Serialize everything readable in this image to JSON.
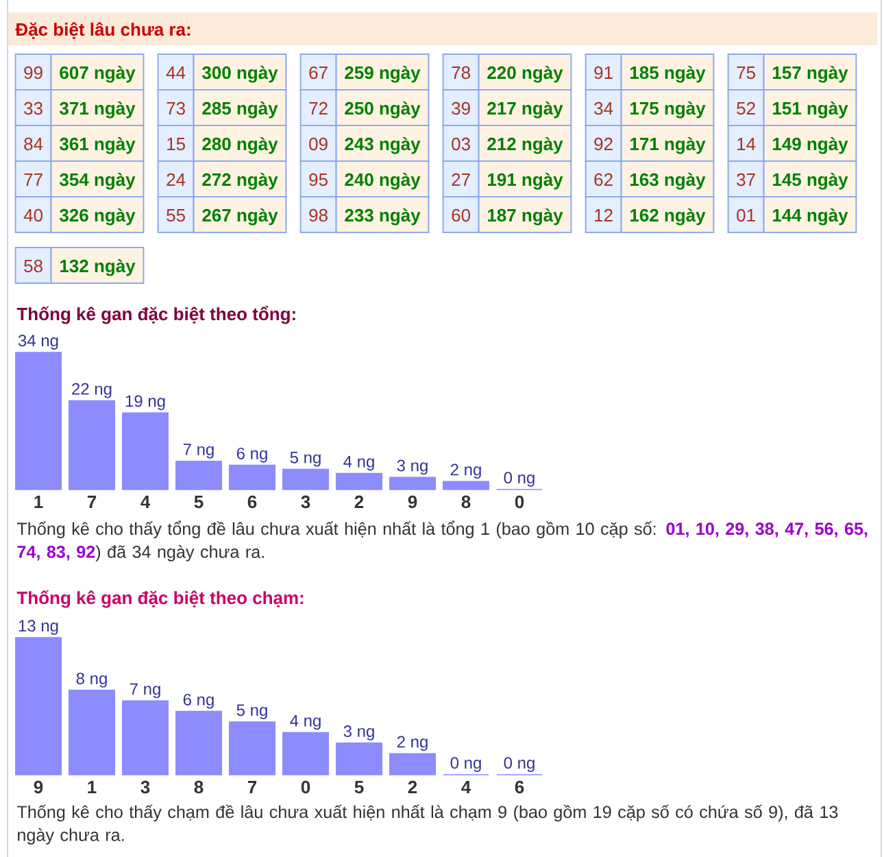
{
  "chart_data": [
    {
      "type": "other",
      "title": "Đặc biệt lâu chưa ra:",
      "annotations": [
        "99",
        "607 ngày",
        "44",
        "300 ngày",
        "67",
        "259 ngày",
        "78",
        "220 ngày",
        "91",
        "185 ngày",
        "75",
        "157 ngày",
        "33",
        "371 ngày",
        "73",
        "285 ngày",
        "72",
        "250 ngày",
        "39",
        "217 ngày",
        "34",
        "175 ngày",
        "52",
        "151 ngày",
        "84",
        "361 ngày",
        "15",
        "280 ngày",
        "09",
        "243 ngày",
        "03",
        "212 ngày",
        "92",
        "171 ngày",
        "14",
        "149 ngày",
        "77",
        "354 ngày",
        "24",
        "272 ngày",
        "95",
        "240 ngày",
        "27",
        "191 ngày",
        "62",
        "163 ngày",
        "37",
        "145 ngày",
        "40",
        "326 ngày",
        "55",
        "267 ngày",
        "98",
        "233 ngày",
        "60",
        "187 ngày",
        "12",
        "162 ngày",
        "01",
        "144 ngày",
        "58",
        "132 ngày"
      ]
    },
    {
      "type": "bar",
      "title": "Thống kê gan đặc biệt theo tổng:",
      "categories": [
        "1",
        "7",
        "4",
        "5",
        "6",
        "3",
        "2",
        "9",
        "8",
        "0"
      ],
      "values": [
        34,
        22,
        19,
        7,
        6,
        5,
        4,
        3,
        2,
        0
      ],
      "value_labels": [
        "34 ng",
        "22 ng",
        "19 ng",
        "7 ng",
        "6 ng",
        "5 ng",
        "4 ng",
        "3 ng",
        "2 ng",
        "0 ng"
      ],
      "color": "#8c8cff",
      "annotations": [
        "Thống kê cho thấy tổng đề lâu chưa xuất hiện nhất là tổng 1 (bao gồm 10 cặp số: **01, 10, 29, 38, 47, 56, 65, 74, 83, 92**) đã 34 ngày chưa ra."
      ]
    },
    {
      "type": "bar",
      "title": "Thống kê gan đặc biệt theo chạm:",
      "categories": [
        "9",
        "1",
        "3",
        "8",
        "7",
        "0",
        "5",
        "2",
        "4",
        "6"
      ],
      "values": [
        13,
        8,
        7,
        6,
        5,
        4,
        3,
        2,
        0,
        0
      ],
      "value_labels": [
        "13 ng",
        "8 ng",
        "7 ng",
        "6 ng",
        "5 ng",
        "4 ng",
        "3 ng",
        "2 ng",
        "0 ng",
        "0 ng"
      ],
      "color": "#8c8cff",
      "annotations": [
        "Thống kê cho thấy chạm đề lâu chưa xuất hiện nhất là chạm 9 (bao gồm 19 cặp số có chứa số 9), đã 13 ngày chưa ra."
      ]
    }
  ]
}
